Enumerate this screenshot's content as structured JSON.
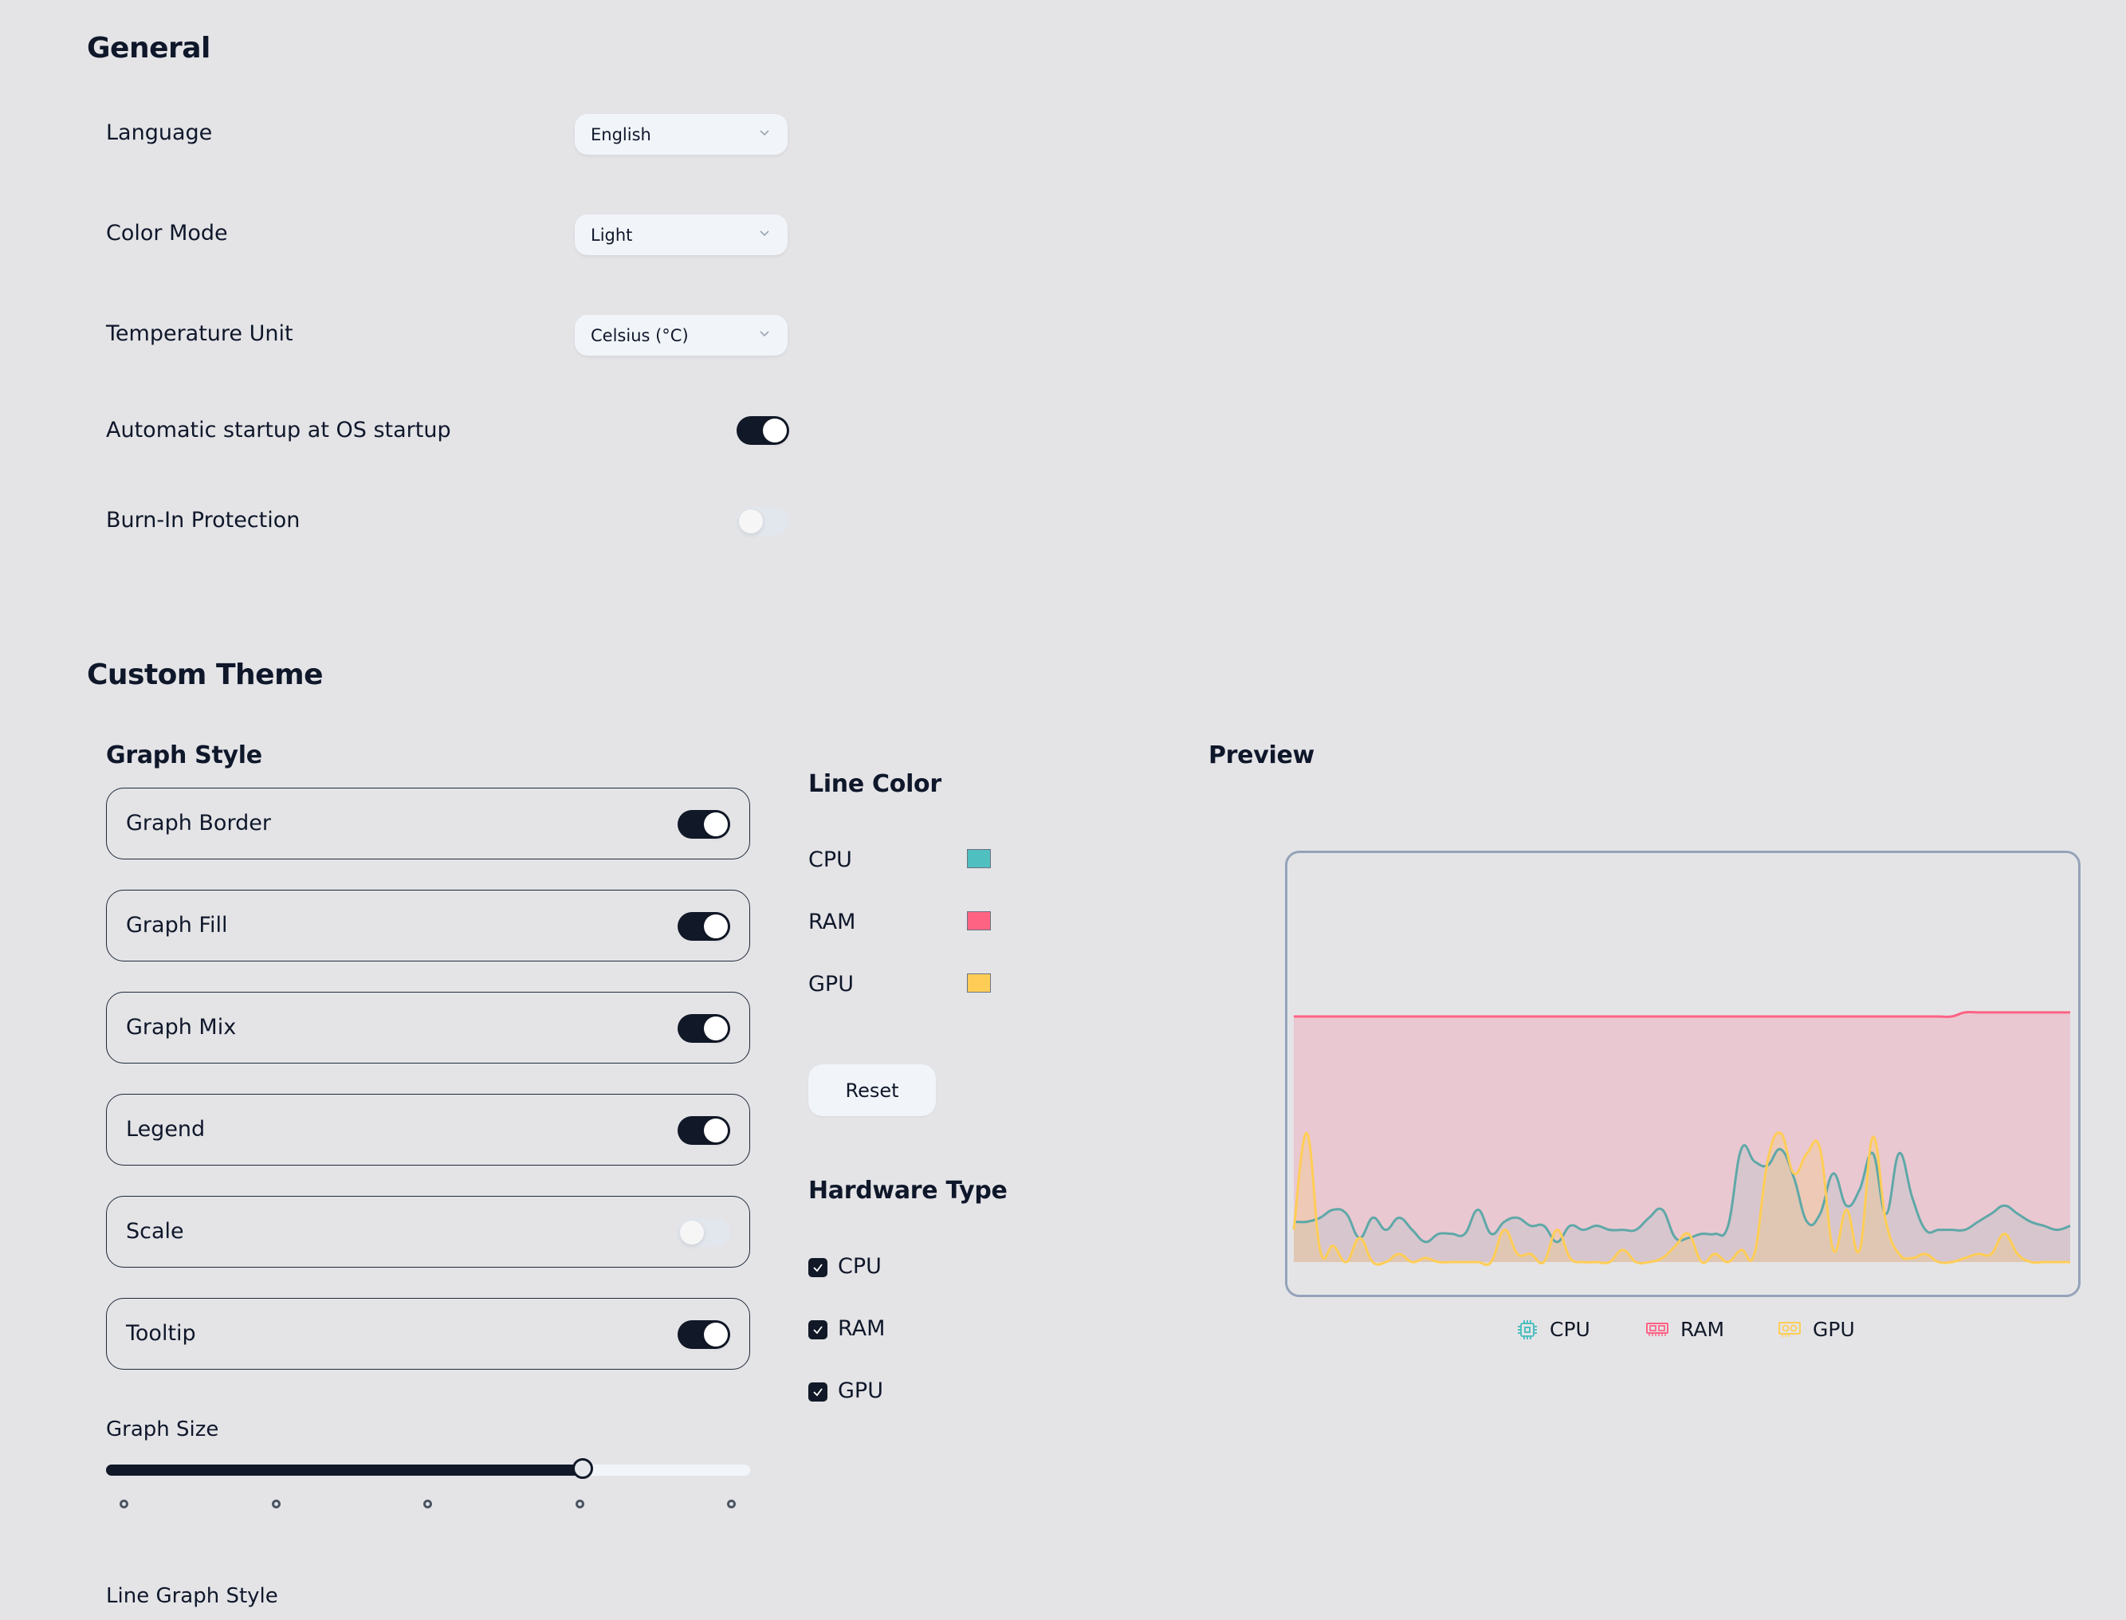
{
  "general": {
    "title": "General",
    "language": {
      "label": "Language",
      "value": "English"
    },
    "color_mode": {
      "label": "Color Mode",
      "value": "Light"
    },
    "temperature_unit": {
      "label": "Temperature Unit",
      "value": "Celsius (°C)"
    },
    "auto_startup": {
      "label": "Automatic startup at OS startup",
      "enabled": true
    },
    "burn_in": {
      "label": "Burn-In Protection",
      "enabled": false
    }
  },
  "custom_theme": {
    "title": "Custom Theme",
    "graph_style": {
      "title": "Graph Style",
      "options": [
        {
          "label": "Graph Border",
          "enabled": true
        },
        {
          "label": "Graph Fill",
          "enabled": true
        },
        {
          "label": "Graph Mix",
          "enabled": true
        },
        {
          "label": "Legend",
          "enabled": true
        },
        {
          "label": "Scale",
          "enabled": false
        },
        {
          "label": "Tooltip",
          "enabled": true
        }
      ]
    },
    "graph_size": {
      "label": "Graph Size",
      "steps": 5,
      "selected_step": 4
    },
    "line_graph_style": {
      "label": "Line Graph Style"
    },
    "line_color": {
      "title": "Line Color",
      "items": [
        {
          "label": "CPU",
          "color": "#4fbfbf"
        },
        {
          "label": "RAM",
          "color": "#ff6384"
        },
        {
          "label": "GPU",
          "color": "#ffcd56"
        }
      ],
      "reset_label": "Reset"
    },
    "hardware_type": {
      "title": "Hardware Type",
      "items": [
        {
          "label": "CPU",
          "checked": true
        },
        {
          "label": "RAM",
          "checked": true
        },
        {
          "label": "GPU",
          "checked": true
        }
      ]
    },
    "preview": {
      "title": "Preview",
      "legend": [
        {
          "label": "CPU",
          "icon": "cpu-icon",
          "color": "#4fbfbf"
        },
        {
          "label": "RAM",
          "icon": "ram-icon",
          "color": "#ff6384"
        },
        {
          "label": "GPU",
          "icon": "gpu-icon",
          "color": "#ffcd56"
        }
      ]
    }
  },
  "chart_data": {
    "type": "area",
    "title": "Preview",
    "xlabel": "",
    "ylabel": "",
    "ylim": [
      0,
      100
    ],
    "grid": false,
    "legend_position": "bottom",
    "x": [
      0,
      1,
      2,
      3,
      4,
      5,
      6,
      7,
      8,
      9,
      10,
      11,
      12,
      13,
      14,
      15,
      16,
      17,
      18,
      19,
      20,
      21,
      22,
      23,
      24,
      25,
      26,
      27,
      28,
      29,
      30,
      31,
      32,
      33,
      34,
      35,
      36,
      37,
      38,
      39,
      40,
      41,
      42,
      43,
      44,
      45,
      46,
      47,
      48,
      49,
      50,
      51,
      52,
      53,
      54,
      55,
      56,
      57,
      58,
      59
    ],
    "series": [
      {
        "name": "CPU",
        "color": "#4fbfbf",
        "values": [
          10,
          10,
          11,
          13,
          12,
          6,
          11,
          8,
          11,
          8,
          5,
          7,
          7,
          7,
          13,
          7,
          10,
          11,
          9,
          9,
          5,
          9,
          8,
          9,
          8,
          8,
          8,
          11,
          13,
          6,
          6,
          7,
          7,
          9,
          28,
          25,
          24,
          28,
          21,
          10,
          12,
          22,
          14,
          18,
          27,
          12,
          27,
          16,
          8,
          8,
          8,
          8,
          10,
          12,
          14,
          12,
          10,
          9,
          8,
          9
        ]
      },
      {
        "name": "RAM",
        "color": "#ff6384",
        "values": [
          61,
          61,
          61,
          61,
          61,
          61,
          61,
          61,
          61,
          61,
          61,
          61,
          61,
          61,
          61,
          61,
          61,
          61,
          61,
          61,
          61,
          61,
          61,
          61,
          61,
          61,
          61,
          61,
          61,
          61,
          61,
          61,
          61,
          61,
          61,
          61,
          61,
          61,
          61,
          61,
          61,
          61,
          61,
          61,
          61,
          61,
          61,
          61,
          61,
          61,
          61,
          62,
          62,
          62,
          62,
          62,
          62,
          62,
          62,
          62
        ]
      },
      {
        "name": "GPU",
        "color": "#ffcd56",
        "values": [
          8,
          32,
          3,
          4,
          0,
          6,
          0,
          0,
          2,
          0,
          1,
          0,
          0,
          0,
          0,
          0,
          8,
          2,
          2,
          0,
          8,
          1,
          0,
          0,
          0,
          3,
          0,
          0,
          1,
          4,
          7,
          0,
          2,
          0,
          3,
          2,
          25,
          32,
          22,
          27,
          28,
          3,
          13,
          3,
          31,
          10,
          2,
          1,
          2,
          0,
          0,
          1,
          2,
          2,
          7,
          2,
          0,
          0,
          0,
          0
        ]
      }
    ]
  }
}
